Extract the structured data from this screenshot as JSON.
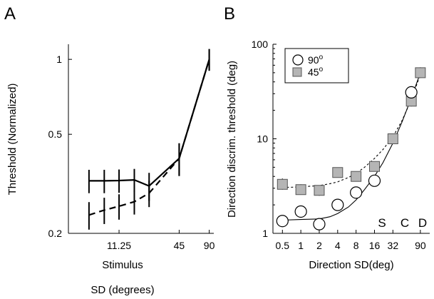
{
  "chart_data": [
    {
      "panel": "A",
      "type": "line",
      "xlabel": [
        "Stimulus",
        "SD (degrees)"
      ],
      "ylabel": "Threshold (Normalized)",
      "x_scale": "log",
      "y_scale": "log",
      "xlim": [
        3.5,
        100
      ],
      "ylim": [
        0.2,
        1.15
      ],
      "xticks": [
        11.25,
        45,
        90
      ],
      "xtick_labels": [
        "11.25",
        "45",
        "90"
      ],
      "yticks": [
        0.2,
        0.5,
        1
      ],
      "ytick_labels": [
        "0.2",
        "0.5",
        "1"
      ],
      "x": [
        5.625,
        8,
        11.25,
        16,
        22.5,
        45,
        90
      ],
      "series": [
        {
          "style": "solid",
          "color": "#000000",
          "values": [
            0.325,
            0.325,
            0.326,
            0.328,
            0.31,
            0.4,
            1.0
          ],
          "error": [
            0.035,
            0.035,
            0.035,
            0.035,
            0.04,
            0.06,
            0.1
          ]
        },
        {
          "style": "dashed",
          "color": "#000000",
          "values": [
            0.237,
            0.248,
            0.257,
            0.268,
            0.29,
            0.4,
            1.0
          ],
          "error": [
            0.03,
            0.03,
            0.03,
            0.03,
            0.035,
            0.06,
            0.1
          ]
        }
      ]
    },
    {
      "panel": "B",
      "type": "scatter",
      "xlabel": "Direction SD(deg)",
      "ylabel": "Direction discrim. threshold (deg)",
      "x_scale": "log2",
      "y_scale": "log",
      "xlim": [
        0.35,
        128
      ],
      "ylim": [
        1,
        100
      ],
      "xticks": [
        0.5,
        1,
        2,
        4,
        8,
        16,
        32,
        90
      ],
      "xtick_labels": [
        "0.5",
        "1",
        "2",
        "4",
        "8",
        "16",
        "32",
        "90"
      ],
      "yticks": [
        1,
        10,
        100
      ],
      "ytick_labels": [
        "1",
        "10",
        "100"
      ],
      "legend_position": "top-left",
      "series": [
        {
          "name": "90°",
          "marker": "open-circle",
          "line": "solid",
          "color": "#000000",
          "x": [
            0.5,
            1,
            2,
            4,
            8,
            16,
            64
          ],
          "y": [
            1.35,
            1.7,
            1.25,
            2.0,
            2.7,
            3.6,
            31
          ],
          "fit": {
            "x": [
              0.5,
              1,
              2,
              3,
              4,
              6,
              8,
              11,
              16,
              22,
              32,
              45,
              64,
              90
            ],
            "y": [
              1.38,
              1.4,
              1.42,
              1.5,
              1.62,
              1.9,
              2.25,
              2.9,
              4.0,
              5.6,
              9.0,
              15.0,
              27.0,
              50.0
            ]
          }
        },
        {
          "name": "45°",
          "marker": "gray-square",
          "line": "dashed",
          "color": "#aaaaaa",
          "x": [
            0.5,
            1,
            2,
            4,
            8,
            16,
            32,
            64,
            90
          ],
          "y": [
            3.3,
            2.9,
            2.85,
            4.4,
            4.0,
            5.1,
            10.0,
            25.0,
            50.0
          ],
          "error_high": [
            3.8,
            3.3,
            3.2,
            4.8,
            4.4,
            5.7,
            11.0,
            28.0,
            57.0
          ],
          "error_low": [
            2.9,
            2.6,
            2.5,
            4.0,
            3.6,
            4.6,
            9.0,
            22.0,
            44.0
          ],
          "fit": {
            "x": [
              0.5,
              1,
              2,
              3,
              4,
              6,
              8,
              11,
              16,
              22,
              32,
              45,
              64,
              90
            ],
            "y": [
              3.05,
              3.1,
              3.2,
              3.35,
              3.5,
              3.9,
              4.3,
              5.0,
              6.2,
              7.7,
              10.5,
              15.5,
              26.0,
              48.0
            ]
          }
        }
      ],
      "annotations": [
        "S",
        "C",
        "D"
      ]
    }
  ],
  "panel_labels": [
    "A",
    "B"
  ],
  "legend": {
    "item1": "90",
    "item1_sup": "o",
    "item2": "45",
    "item2_sup": "o"
  }
}
